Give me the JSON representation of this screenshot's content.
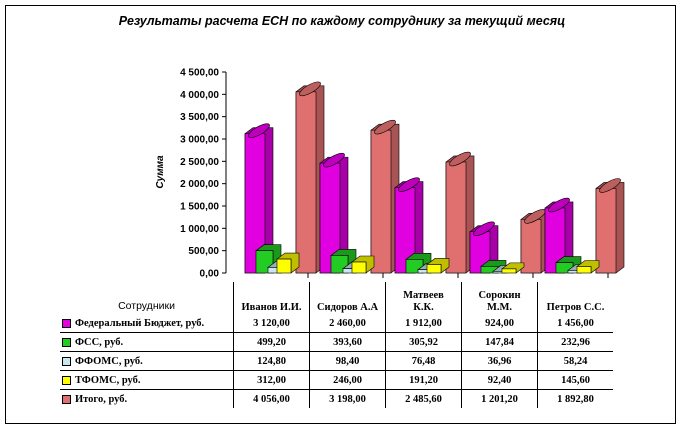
{
  "chart_data": {
    "type": "bar",
    "title": "Результаты расчета ЕСН по каждому сотруднику за текущий месяц",
    "xlabel": "Сотрудники",
    "ylabel": "Сумма",
    "ylim": [
      0,
      4500
    ],
    "yticks": [
      "0,00",
      "500,00",
      "1 000,00",
      "1 500,00",
      "2 000,00",
      "2 500,00",
      "3 000,00",
      "3 500,00",
      "4 000,00",
      "4 500,00"
    ],
    "categories": [
      "Иванов И.И.",
      "Сидоров А.А",
      "Матвеев К.К.",
      "Сорокин М.М.",
      "Петров С.С."
    ],
    "series": [
      {
        "name": "Федеральный Бюджет, руб.",
        "color": "#e000e0",
        "values": [
          3120,
          2460,
          1912,
          924,
          1456
        ],
        "labels": [
          "3 120,00",
          "2 460,00",
          "1 912,00",
          "924,00",
          "1 456,00"
        ]
      },
      {
        "name": "ФСС, руб.",
        "color": "#22cc22",
        "values": [
          499.2,
          393.6,
          305.92,
          147.84,
          232.96
        ],
        "labels": [
          "499,20",
          "393,60",
          "305,92",
          "147,84",
          "232,96"
        ]
      },
      {
        "name": "ФФОМС, руб.",
        "color": "#c8e8f0",
        "values": [
          124.8,
          98.4,
          76.48,
          36.96,
          58.24
        ],
        "labels": [
          "124,80",
          "98,40",
          "76,48",
          "36,96",
          "58,24"
        ]
      },
      {
        "name": "ТФОМС, руб.",
        "color": "#ffff00",
        "values": [
          312,
          246,
          191.2,
          92.4,
          145.6
        ],
        "labels": [
          "312,00",
          "246,00",
          "191,20",
          "92,40",
          "145,60"
        ]
      },
      {
        "name": "Итого, руб.",
        "color": "#e07070",
        "values": [
          4056,
          3198,
          2485.6,
          1201.2,
          1892.8
        ],
        "labels": [
          "4 056,00",
          "3 198,00",
          "2 485,60",
          "1 201,20",
          "1 892,80"
        ]
      }
    ]
  }
}
